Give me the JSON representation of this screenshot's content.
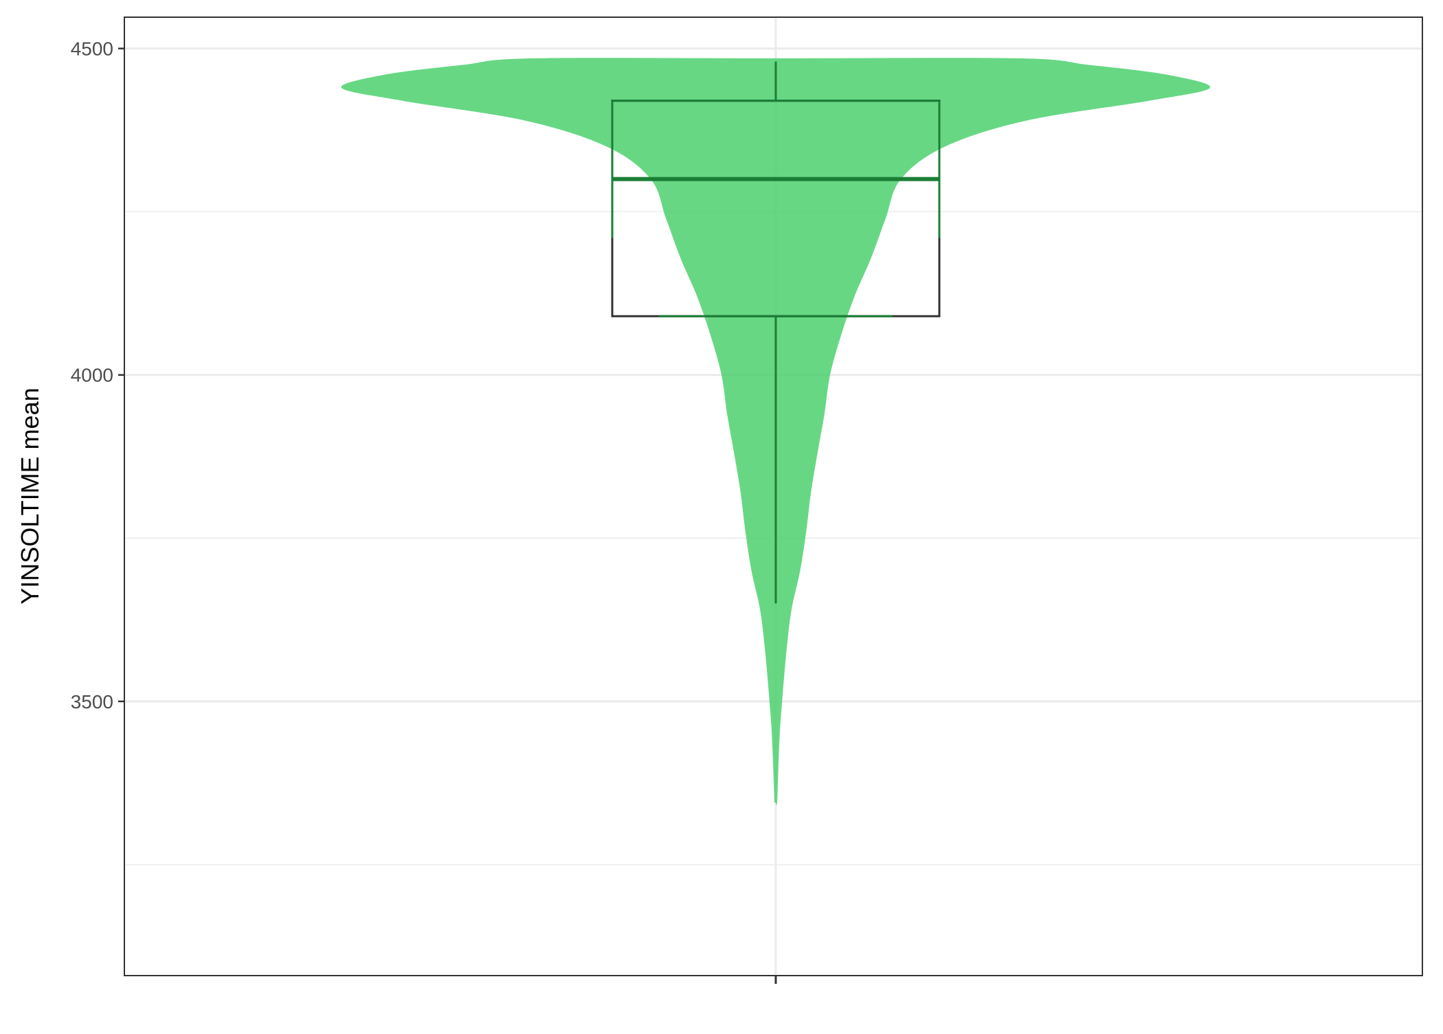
{
  "chart_data": {
    "type": "violin",
    "title": "",
    "xlabel": "",
    "ylabel": "YINSOLTIME mean",
    "ylim": [
      3080,
      4548
    ],
    "y_ticks": [
      3500,
      4000,
      4500
    ],
    "y_tick_labels": [
      "3500",
      "4000",
      "4500"
    ],
    "y_minor_gridlines": [
      3250,
      3750,
      4250
    ],
    "grid": true,
    "legend": "none",
    "fill_color": "#4CD06E",
    "fill_opacity": 0.85,
    "box_outline_color": "#333333",
    "overlap_line_color": "#1A7F35",
    "box": {
      "q1": 4090,
      "median": 4300,
      "q3": 4420,
      "whisker_low": 3650,
      "whisker_high": 4480
    },
    "density_profile": [
      {
        "y": 3345,
        "w": 0.003
      },
      {
        "y": 3400,
        "w": 0.006
      },
      {
        "y": 3460,
        "w": 0.01
      },
      {
        "y": 3520,
        "w": 0.017
      },
      {
        "y": 3580,
        "w": 0.025
      },
      {
        "y": 3640,
        "w": 0.036
      },
      {
        "y": 3700,
        "w": 0.056
      },
      {
        "y": 3760,
        "w": 0.07
      },
      {
        "y": 3820,
        "w": 0.081
      },
      {
        "y": 3880,
        "w": 0.096
      },
      {
        "y": 3940,
        "w": 0.112
      },
      {
        "y": 4000,
        "w": 0.125
      },
      {
        "y": 4060,
        "w": 0.15
      },
      {
        "y": 4120,
        "w": 0.181
      },
      {
        "y": 4180,
        "w": 0.22
      },
      {
        "y": 4240,
        "w": 0.253
      },
      {
        "y": 4300,
        "w": 0.288
      },
      {
        "y": 4350,
        "w": 0.39
      },
      {
        "y": 4390,
        "w": 0.58
      },
      {
        "y": 4420,
        "w": 0.86
      },
      {
        "y": 4440,
        "w": 1.0
      },
      {
        "y": 4460,
        "w": 0.9
      },
      {
        "y": 4475,
        "w": 0.72
      },
      {
        "y": 4485,
        "w": 0.56
      }
    ]
  }
}
